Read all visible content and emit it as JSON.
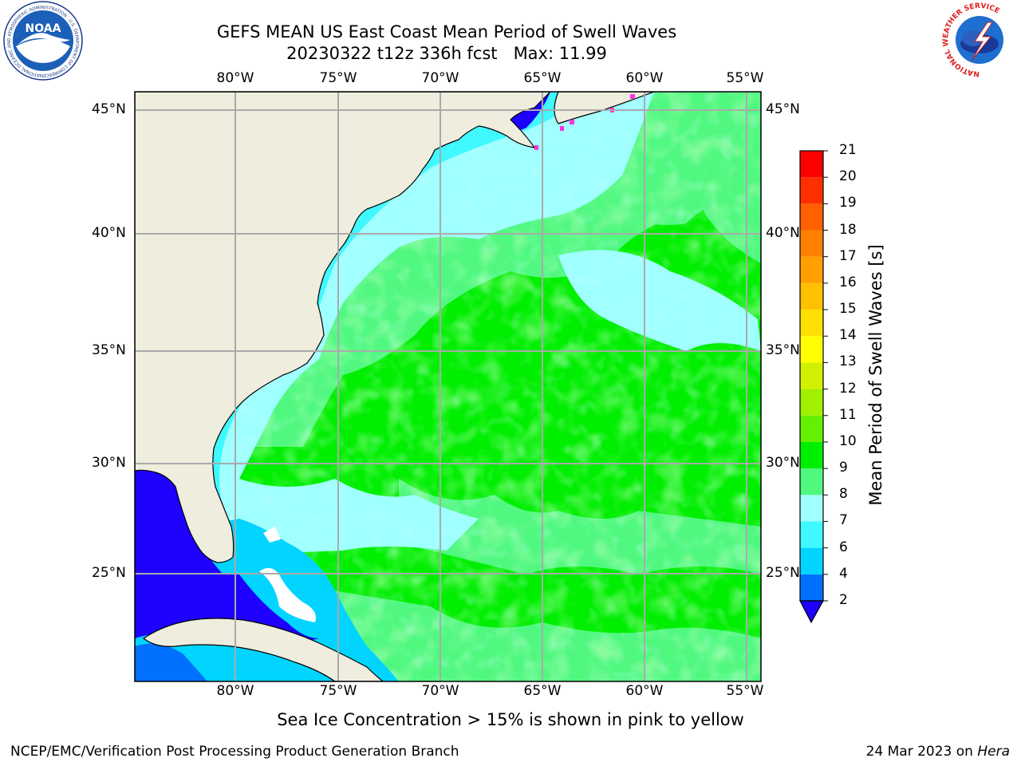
{
  "header": {
    "title_line1": "GEFS MEAN US East Coast Mean Period of Swell Waves",
    "title_line2": "20230322 t12z 336h fcst   Max: 11.99"
  },
  "logos": {
    "left": "noaa-logo",
    "right": "nws-logo",
    "noaa_text": "NOAA",
    "noaa_ring": "NATIONAL OCEANIC AND ATMOSPHERIC ADMINISTRATION · U.S. DEPARTMENT OF COMMERCE",
    "nws_ring": "NATIONAL WEATHER SERVICE"
  },
  "map": {
    "lon_labels": [
      "80°W",
      "75°W",
      "70°W",
      "65°W",
      "60°W",
      "55°W"
    ],
    "lat_labels": [
      "45°N",
      "40°N",
      "35°N",
      "30°N",
      "25°N"
    ],
    "field": "Mean Period of Swell Waves",
    "grid": true
  },
  "colorbar": {
    "label": "Mean Period of Swell Waves [s]",
    "ticks": [
      "2",
      "4",
      "6",
      "7",
      "8",
      "9",
      "10",
      "11",
      "12",
      "13",
      "14",
      "15",
      "16",
      "17",
      "18",
      "19",
      "20",
      "21"
    ],
    "colors": [
      "#0070ff",
      "#00d4ff",
      "#40f8ff",
      "#a0ffff",
      "#50f880",
      "#00ee00",
      "#64f000",
      "#a0f000",
      "#d0f000",
      "#ffff00",
      "#ffe000",
      "#ffc000",
      "#ffa000",
      "#ff8000",
      "#ff6000",
      "#ff3000",
      "#ff0000"
    ],
    "under_color": "#1e00ff"
  },
  "caption": "Sea Ice Concentration > 15% is shown in pink to yellow",
  "footer": {
    "left": "NCEP/EMC/Verification Post Processing Product Generation Branch",
    "right_prefix": "24 Mar 2023 on ",
    "right_host": "Hera"
  }
}
